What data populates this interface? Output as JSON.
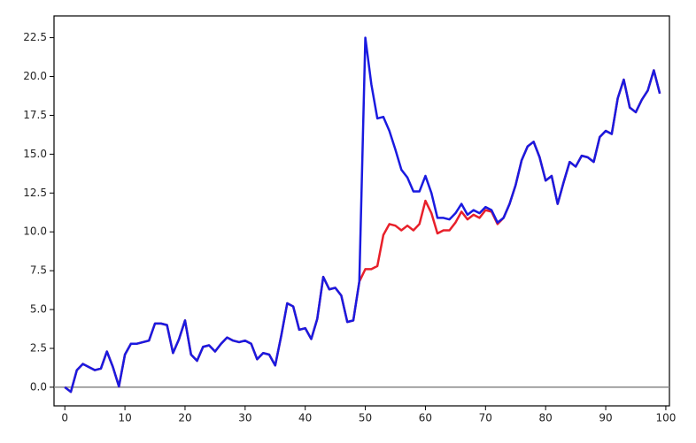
{
  "chart_data": {
    "type": "line",
    "x": [
      0,
      1,
      2,
      3,
      4,
      5,
      6,
      7,
      8,
      9,
      10,
      11,
      12,
      13,
      14,
      15,
      16,
      17,
      18,
      19,
      20,
      21,
      22,
      23,
      24,
      25,
      26,
      27,
      28,
      29,
      30,
      31,
      32,
      33,
      34,
      35,
      36,
      37,
      38,
      39,
      40,
      41,
      42,
      43,
      44,
      45,
      46,
      47,
      48,
      49,
      50,
      51,
      52,
      53,
      54,
      55,
      56,
      57,
      58,
      59,
      60,
      61,
      62,
      63,
      64,
      65,
      66,
      67,
      68,
      69,
      70,
      71,
      72,
      73,
      74,
      75,
      76,
      77,
      78,
      79,
      80,
      81,
      82,
      83,
      84,
      85,
      86,
      87,
      88,
      89,
      90,
      91,
      92,
      93,
      94,
      95,
      96,
      97,
      98,
      99
    ],
    "series": [
      {
        "color": "#e8202a",
        "values": [
          0.0,
          -0.3,
          1.1,
          1.5,
          1.3,
          1.1,
          1.2,
          2.3,
          1.3,
          0.05,
          2.1,
          2.8,
          2.8,
          2.9,
          3.0,
          4.1,
          4.1,
          4.0,
          2.2,
          3.1,
          4.3,
          2.1,
          1.7,
          2.6,
          2.7,
          2.3,
          2.8,
          3.2,
          3.0,
          2.9,
          3.0,
          2.8,
          1.8,
          2.2,
          2.1,
          1.4,
          3.3,
          5.4,
          5.2,
          3.7,
          3.8,
          3.1,
          4.4,
          7.1,
          6.3,
          6.4,
          5.9,
          4.2,
          4.3,
          6.8,
          7.6,
          7.6,
          7.8,
          9.8,
          10.5,
          10.4,
          10.1,
          10.4,
          10.1,
          10.5,
          12.0,
          11.2,
          9.9,
          10.1,
          10.1,
          10.6,
          11.3,
          10.8,
          11.1,
          10.9,
          11.4,
          11.3,
          10.5,
          10.9,
          11.8,
          13.0,
          14.6,
          15.5,
          15.8,
          14.8,
          13.3,
          13.6,
          11.8,
          13.2,
          14.5,
          14.2,
          14.9,
          14.8,
          14.5,
          16.1,
          16.5,
          16.3,
          18.6,
          19.8,
          18.0,
          17.7,
          18.5,
          19.1,
          20.4,
          18.9
        ]
      },
      {
        "color": "#1a1ae0",
        "values": [
          0.0,
          -0.3,
          1.1,
          1.5,
          1.3,
          1.1,
          1.2,
          2.3,
          1.3,
          0.05,
          2.1,
          2.8,
          2.8,
          2.9,
          3.0,
          4.1,
          4.1,
          4.0,
          2.2,
          3.1,
          4.3,
          2.1,
          1.7,
          2.6,
          2.7,
          2.3,
          2.8,
          3.2,
          3.0,
          2.9,
          3.0,
          2.8,
          1.8,
          2.2,
          2.1,
          1.4,
          3.3,
          5.4,
          5.2,
          3.7,
          3.8,
          3.1,
          4.4,
          7.1,
          6.3,
          6.4,
          5.9,
          4.2,
          4.3,
          6.8,
          22.5,
          19.5,
          17.3,
          17.4,
          16.5,
          15.3,
          14.0,
          13.5,
          12.6,
          12.6,
          13.6,
          12.5,
          10.9,
          10.9,
          10.8,
          11.2,
          11.8,
          11.1,
          11.4,
          11.2,
          11.6,
          11.4,
          10.6,
          10.9,
          11.8,
          13.0,
          14.6,
          15.5,
          15.8,
          14.8,
          13.3,
          13.6,
          11.8,
          13.2,
          14.5,
          14.2,
          14.9,
          14.8,
          14.5,
          16.1,
          16.5,
          16.3,
          18.6,
          19.8,
          18.0,
          17.7,
          18.5,
          19.1,
          20.4,
          18.9
        ]
      }
    ],
    "xlim": [
      -1.8,
      100.6
    ],
    "ylim": [
      -1.2,
      23.9
    ],
    "xticks": [
      0,
      10,
      20,
      30,
      40,
      50,
      60,
      70,
      80,
      90,
      100
    ],
    "yticks": [
      {
        "value": 0,
        "label": "0.0"
      },
      2.5,
      {
        "value": 5,
        "label": "5.0"
      },
      7.5,
      {
        "value": 10,
        "label": "10.0"
      },
      12.5,
      {
        "value": 15,
        "label": "15.0"
      },
      17.5,
      {
        "value": 20,
        "label": "20.0"
      },
      22.5
    ],
    "baseline": 0
  }
}
